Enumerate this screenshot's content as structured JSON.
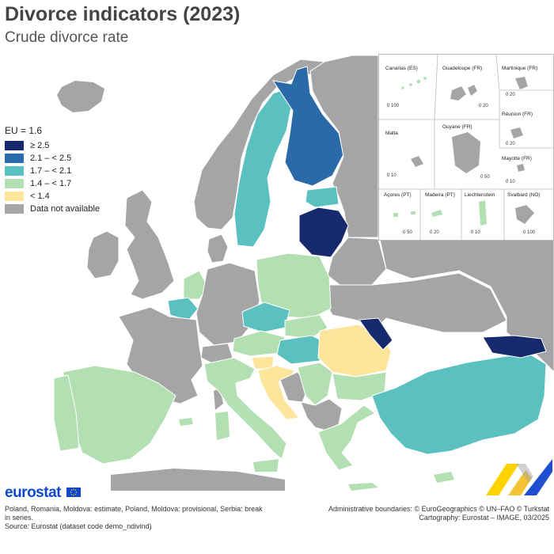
{
  "title": "Divorce indicators (2023)",
  "subtitle": "Crude divorce rate",
  "legend": {
    "title": "EU = 1.6",
    "items": [
      {
        "label": "≥ 2.5",
        "color": "#172a6e"
      },
      {
        "label": "2.1 – < 2.5",
        "color": "#2a6aa8"
      },
      {
        "label": "1.7 – < 2.1",
        "color": "#5bc0c0"
      },
      {
        "label": "1.4 – < 1.7",
        "color": "#b3e0b2"
      },
      {
        "label": "< 1.4",
        "color": "#fde59b"
      },
      {
        "label": "Data not available",
        "color": "#a5a5a5"
      }
    ]
  },
  "insets": [
    {
      "name": "Canarias (ES)",
      "scale": "0  100"
    },
    {
      "name": "Guadeloupe (FR)",
      "scale": "0  20"
    },
    {
      "name": "Martinique (FR)",
      "scale": "0  20"
    },
    {
      "name": "Malta",
      "scale": "0  10"
    },
    {
      "name": "Réunion (FR)",
      "scale": "0  20"
    },
    {
      "name": "Guyane (FR)",
      "scale": "0  50"
    },
    {
      "name": "Mayotte (FR)",
      "scale": "0  10"
    },
    {
      "name": "Açores (PT)",
      "scale": "0  50"
    },
    {
      "name": "Madeira (PT)",
      "scale": "0  20"
    },
    {
      "name": "Liechtenstein",
      "scale": "0  10"
    },
    {
      "name": "Svalbard (NO)",
      "scale": "0 100"
    }
  ],
  "footer": {
    "brand": "eurostat",
    "notes": "Poland, Romania, Moldova: estimate, Poland, Moldova: provisional, Serbia: break in series.",
    "source": "Source: Eurostat (dataset code demo_ndivind)",
    "boundaries": "Administrative boundaries: © EuroGeographics © UN–FAO © Turkstat",
    "cartography": "Cartography: Eurostat – IMAGE, 03/2025"
  },
  "colors": {
    "sea": "#ffffff",
    "no_data": "#a5a5a5",
    "border": "#ffffff"
  }
}
